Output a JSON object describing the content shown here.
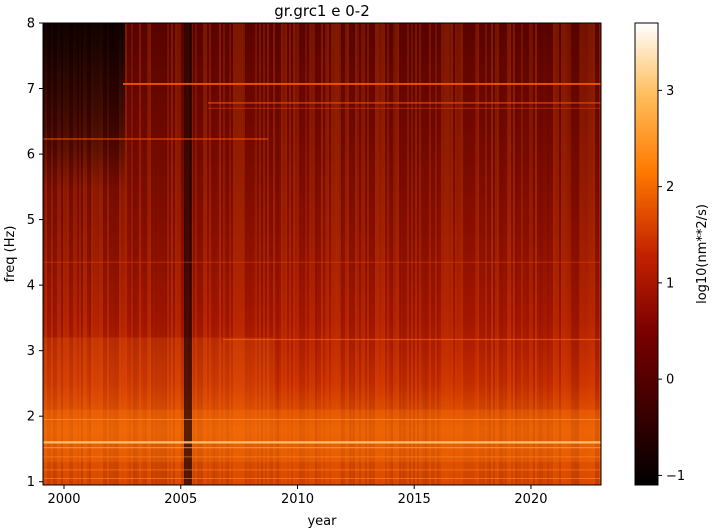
{
  "chart_data": {
    "type": "heatmap",
    "title": "gr.grc1 e 0-2",
    "xlabel": "year",
    "ylabel": "freq (Hz)",
    "xlim": [
      1999.1,
      2023.0
    ],
    "ylim": [
      0.95,
      8.0
    ],
    "x_ticks": [
      2000,
      2005,
      2010,
      2015,
      2020
    ],
    "x_tick_labels": [
      "2000",
      "2005",
      "2010",
      "2015",
      "2020"
    ],
    "y_ticks": [
      1,
      2,
      3,
      4,
      5,
      6,
      7,
      8
    ],
    "y_tick_labels": [
      "1",
      "2",
      "3",
      "4",
      "5",
      "6",
      "7",
      "8"
    ],
    "colorbar": {
      "label": "log10(nm**2/s)",
      "range": [
        -1.1,
        3.7
      ],
      "ticks": [
        -1,
        0,
        1,
        2,
        3
      ],
      "tick_labels": [
        "−1",
        "0",
        "1",
        "2",
        "3"
      ],
      "colormap": "gist_heat"
    },
    "colors": {
      "low": "#000000",
      "mid": "#c00000",
      "high_orange": "#ff8000",
      "top": "#ffffff"
    }
  }
}
